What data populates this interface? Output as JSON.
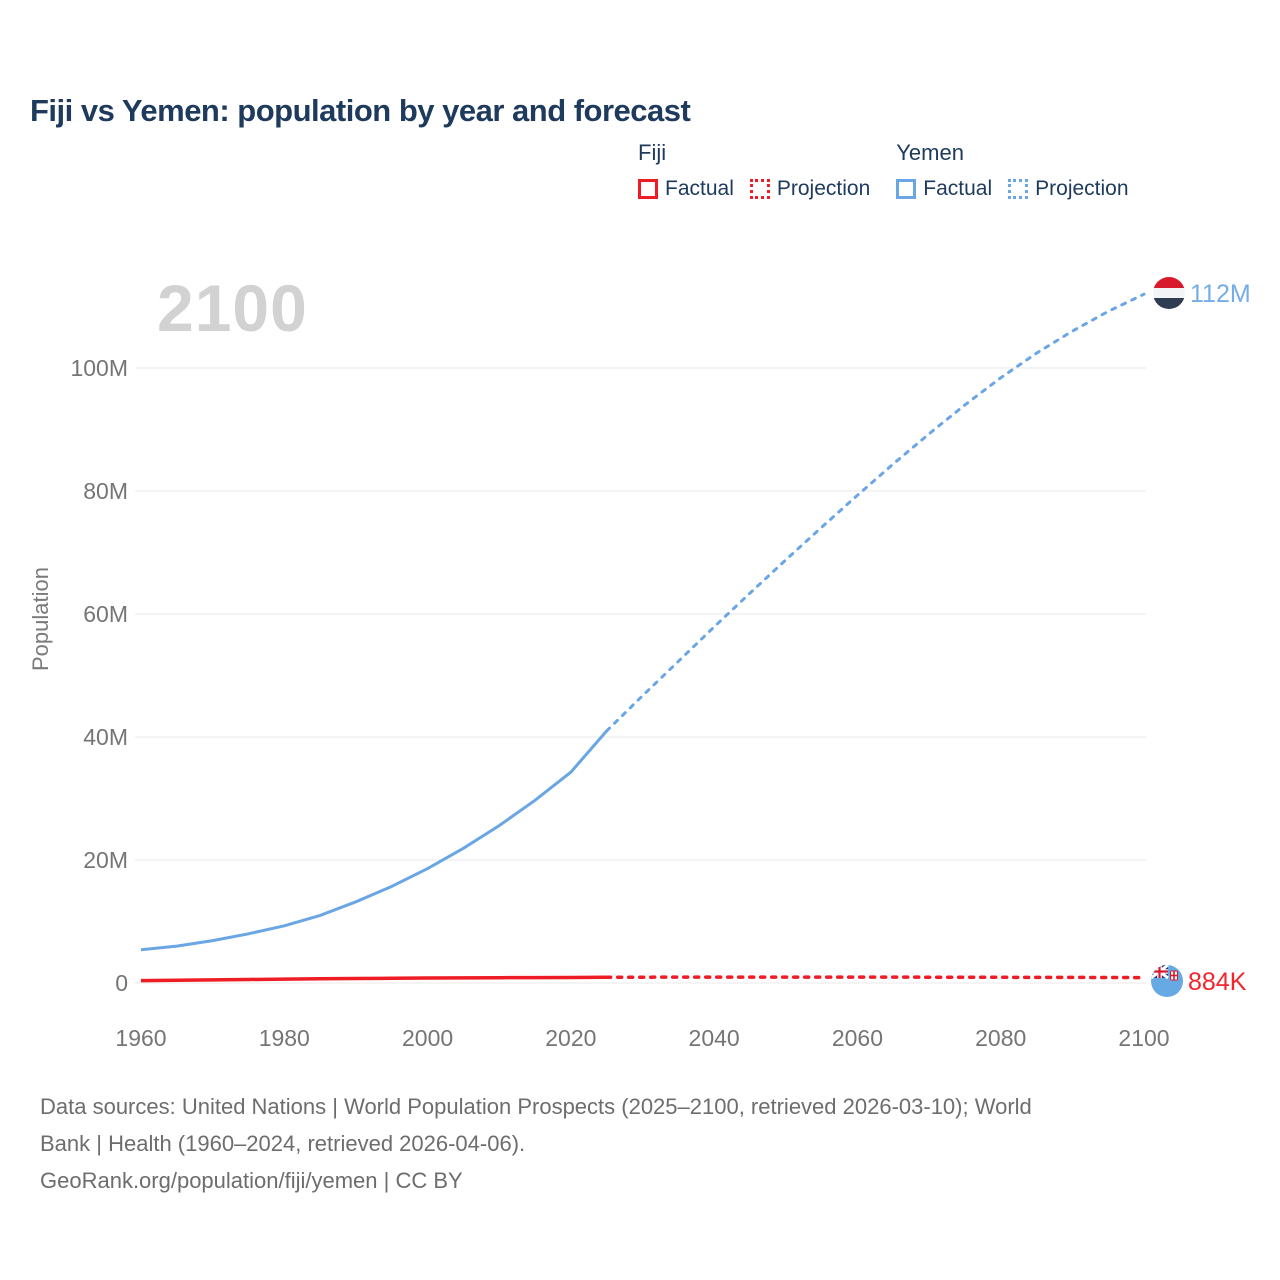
{
  "header": {
    "title": "Fiji vs Yemen: population by year and forecast"
  },
  "legend": {
    "groups": [
      {
        "name": "Fiji",
        "items": [
          {
            "label": "Factual",
            "style": "solid"
          },
          {
            "label": "Projection",
            "style": "dotted"
          }
        ]
      },
      {
        "name": "Yemen",
        "items": [
          {
            "label": "Factual",
            "style": "solid"
          },
          {
            "label": "Projection",
            "style": "dotted"
          }
        ]
      }
    ]
  },
  "watermark": "2100",
  "colors": {
    "fiji": "#ee1c25",
    "yemen": "#6aa6e3",
    "yemen_label": "#74ade8",
    "title_text": "#1e3a5c",
    "tick_text": "#757575",
    "gridline": "#ededed",
    "watermark": "#d2d2d2",
    "footer_text": "#6d6d6d",
    "yemen_flag_red": "#d81b2c",
    "yemen_flag_dark": "#2e3d52",
    "fiji_flag_blue": "#66a9e3"
  },
  "chart_data": {
    "type": "line",
    "title": "Fiji vs Yemen: population by year and forecast",
    "xlabel": "",
    "ylabel": "Population",
    "units": "millions of people",
    "grid": "horizontal-only",
    "legend_position": "top-right",
    "x_axis": {
      "range": [
        1960,
        2100
      ],
      "ticks": [
        1960,
        1980,
        2000,
        2020,
        2040,
        2060,
        2080,
        2100
      ]
    },
    "y_axis": {
      "range": [
        0,
        100
      ],
      "ticks": [
        {
          "value": 0,
          "label": "0"
        },
        {
          "value": 20,
          "label": "20M"
        },
        {
          "value": 40,
          "label": "40M"
        },
        {
          "value": 60,
          "label": "60M"
        },
        {
          "value": 80,
          "label": "80M"
        },
        {
          "value": 100,
          "label": "100M"
        }
      ]
    },
    "series": [
      {
        "id": "yemen-factual",
        "country": "Yemen",
        "kind": "Factual",
        "dash": "solid",
        "color": "#6aa6e3",
        "points": [
          [
            1960,
            5.4
          ],
          [
            1965,
            6.0
          ],
          [
            1970,
            6.9
          ],
          [
            1975,
            8.0
          ],
          [
            1980,
            9.3
          ],
          [
            1985,
            11.0
          ],
          [
            1990,
            13.2
          ],
          [
            1995,
            15.7
          ],
          [
            2000,
            18.6
          ],
          [
            2005,
            21.9
          ],
          [
            2010,
            25.6
          ],
          [
            2015,
            29.7
          ],
          [
            2020,
            34.3
          ],
          [
            2025,
            41.0
          ]
        ]
      },
      {
        "id": "yemen-projection",
        "country": "Yemen",
        "kind": "Projection",
        "dash": "dotted",
        "color": "#6aa6e3",
        "points": [
          [
            2025,
            41.0
          ],
          [
            2030,
            46.7
          ],
          [
            2035,
            52.3
          ],
          [
            2040,
            57.9
          ],
          [
            2045,
            63.4
          ],
          [
            2050,
            68.8
          ],
          [
            2055,
            74.1
          ],
          [
            2060,
            79.3
          ],
          [
            2065,
            84.4
          ],
          [
            2070,
            89.3
          ],
          [
            2075,
            94.0
          ],
          [
            2080,
            98.4
          ],
          [
            2085,
            102.4
          ],
          [
            2090,
            106.0
          ],
          [
            2095,
            109.2
          ],
          [
            2100,
            112.0
          ]
        ]
      },
      {
        "id": "fiji-factual",
        "country": "Fiji",
        "kind": "Factual",
        "dash": "solid",
        "color": "#ee1c25",
        "points": [
          [
            1960,
            0.394
          ],
          [
            1965,
            0.449
          ],
          [
            1970,
            0.505
          ],
          [
            1975,
            0.569
          ],
          [
            1980,
            0.635
          ],
          [
            1985,
            0.697
          ],
          [
            1990,
            0.728
          ],
          [
            1995,
            0.768
          ],
          [
            2000,
            0.811
          ],
          [
            2005,
            0.822
          ],
          [
            2010,
            0.859
          ],
          [
            2015,
            0.878
          ],
          [
            2020,
            0.9
          ],
          [
            2025,
            0.928
          ]
        ]
      },
      {
        "id": "fiji-projection",
        "country": "Fiji",
        "kind": "Projection",
        "dash": "dotted",
        "color": "#ee1c25",
        "points": [
          [
            2025,
            0.928
          ],
          [
            2030,
            0.944
          ],
          [
            2040,
            0.961
          ],
          [
            2050,
            0.964
          ],
          [
            2060,
            0.955
          ],
          [
            2070,
            0.94
          ],
          [
            2080,
            0.922
          ],
          [
            2090,
            0.903
          ],
          [
            2100,
            0.884
          ]
        ]
      }
    ],
    "end_labels": [
      {
        "series": "Yemen",
        "flag": "yemen-flag",
        "text": "112M"
      },
      {
        "series": "Fiji",
        "flag": "fiji-flag",
        "text": "884K"
      }
    ]
  },
  "end_labels": {
    "yemen": "112M",
    "fiji": "884K"
  },
  "footer": {
    "lines": [
      "Data sources: United Nations | World Population Prospects (2025–2100, retrieved 2026-03-10); World",
      "Bank | Health (1960–2024, retrieved 2026-04-06).",
      "GeoRank.org/population/fiji/yemen | CC BY"
    ]
  }
}
